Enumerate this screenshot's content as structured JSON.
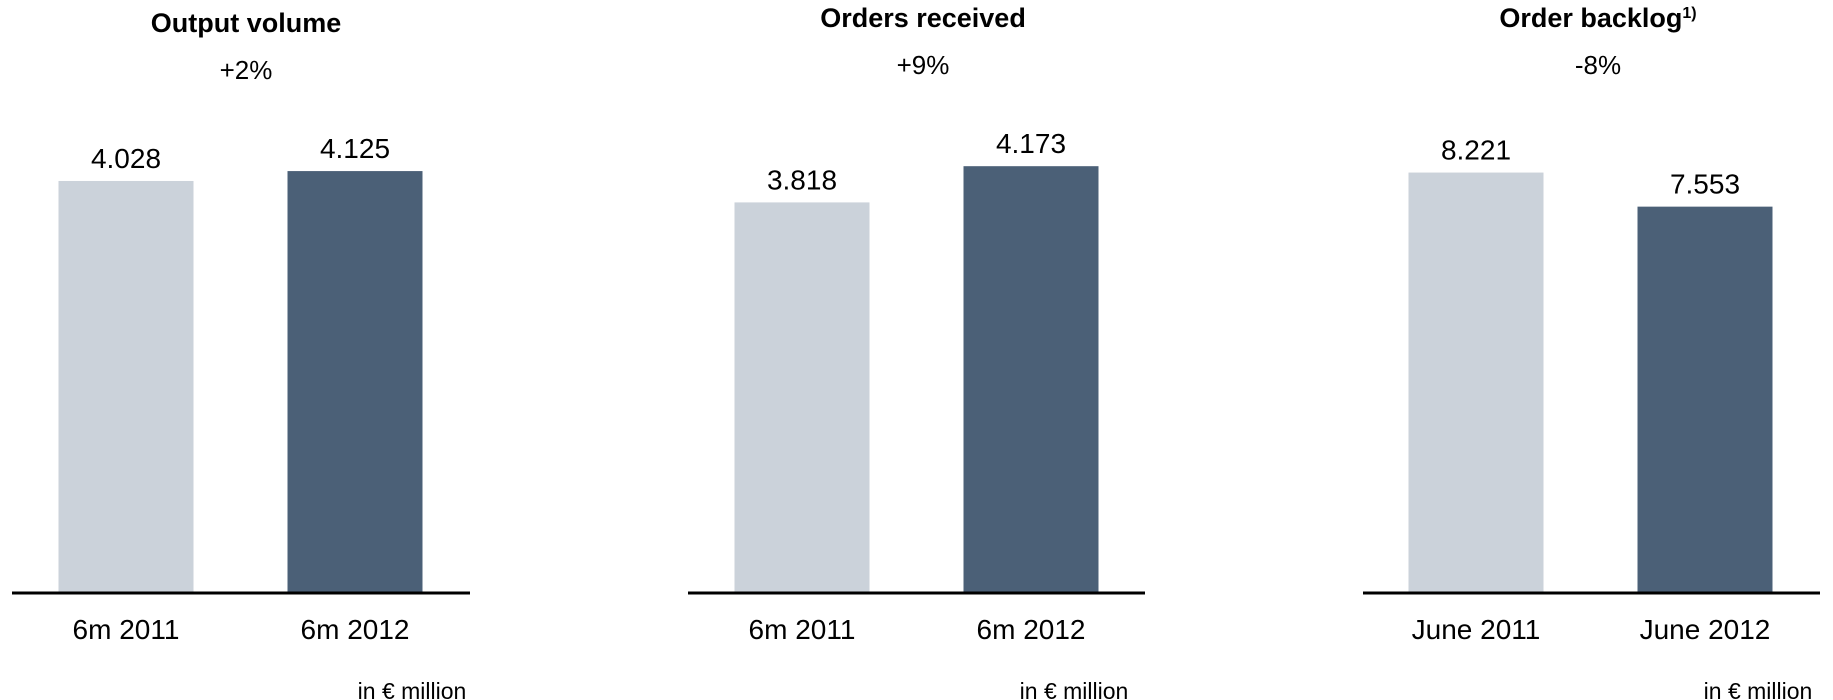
{
  "colors": {
    "bar_previous": "#cbd2da",
    "bar_current": "#4b6077",
    "axis": "#000000"
  },
  "chart_data": [
    {
      "type": "bar",
      "title": "Output volume",
      "title_sup": "",
      "change": "+2%",
      "categories": [
        "6m 2011",
        "6m 2012"
      ],
      "values": [
        4.028,
        4.125
      ],
      "value_labels": [
        "4.028",
        "4.125"
      ],
      "unit": "in € million",
      "ylim": [
        0,
        4.9
      ]
    },
    {
      "type": "bar",
      "title": "Orders received",
      "title_sup": "",
      "change": "+9%",
      "categories": [
        "6m 2011",
        "6m 2012"
      ],
      "values": [
        3.818,
        4.173
      ],
      "value_labels": [
        "3.818",
        "4.173"
      ],
      "unit": "in € million",
      "ylim": [
        0,
        4.9
      ]
    },
    {
      "type": "bar",
      "title": "Order backlog",
      "title_sup": "1)",
      "change": "-8%",
      "categories": [
        "June 2011",
        "June 2012"
      ],
      "values": [
        8.221,
        7.553
      ],
      "value_labels": [
        "8.221",
        "7.553"
      ],
      "unit": "in € million",
      "ylim": [
        0,
        9.8
      ]
    }
  ]
}
